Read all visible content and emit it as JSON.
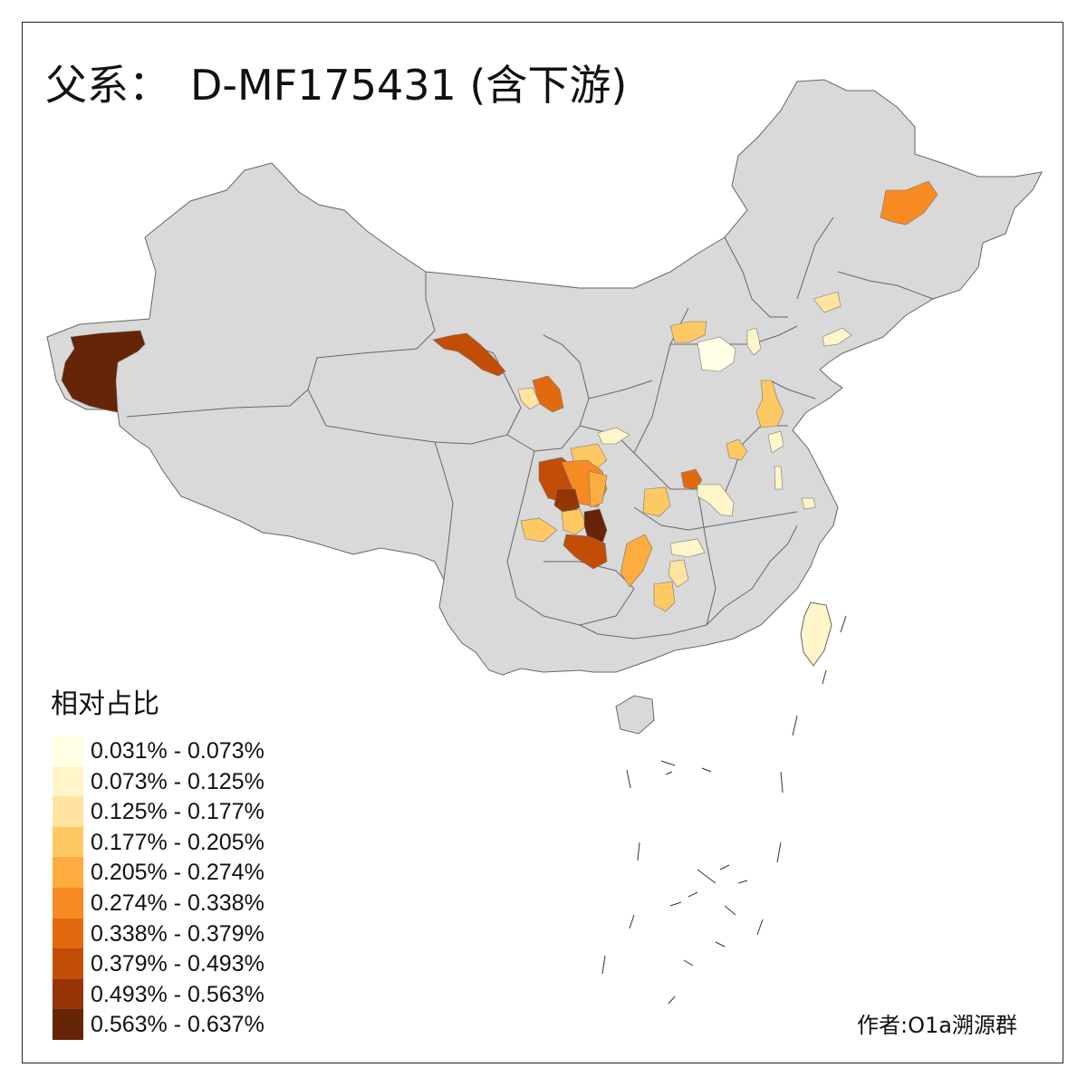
{
  "title": {
    "prefix": "父系：",
    "name": "D-MF175431 (含下游)"
  },
  "legend": {
    "title": "相对占比",
    "items": [
      {
        "label": "0.031% - 0.073%",
        "color": "#ffffe5"
      },
      {
        "label": "0.073% - 0.125%",
        "color": "#fff5c9"
      },
      {
        "label": "0.125% - 0.177%",
        "color": "#fee4a0"
      },
      {
        "label": "0.177% - 0.205%",
        "color": "#fec963"
      },
      {
        "label": "0.205% - 0.274%",
        "color": "#feac3f"
      },
      {
        "label": "0.274% - 0.338%",
        "color": "#f78a23"
      },
      {
        "label": "0.338% - 0.379%",
        "color": "#e2690d"
      },
      {
        "label": "0.379% - 0.493%",
        "color": "#c24d07"
      },
      {
        "label": "0.493% - 0.563%",
        "color": "#953505"
      },
      {
        "label": "0.563% - 0.637%",
        "color": "#662506"
      }
    ]
  },
  "author": "作者:O1a溯源群",
  "colors": {
    "land": "#d9d9d9",
    "border": "#666666",
    "frame": "#222222"
  }
}
